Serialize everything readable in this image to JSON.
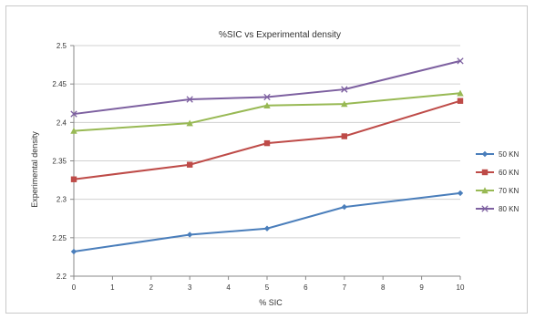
{
  "chart_data": {
    "type": "line",
    "title": "%SIC vs Experimental density",
    "xlabel": "% SIC",
    "ylabel": "Experimental density",
    "xlim": [
      0,
      10
    ],
    "ylim": [
      2.2,
      2.5
    ],
    "x_ticks": [
      "0",
      "1",
      "2",
      "3",
      "4",
      "5",
      "6",
      "7",
      "8",
      "9",
      "10"
    ],
    "y_ticks": [
      "2.2",
      "2.25",
      "2.3",
      "2.35",
      "2.4",
      "2.45",
      "2.5"
    ],
    "grid": "horizontal",
    "legend_position": "right",
    "series": [
      {
        "name": "50 KN",
        "color": "#4a7ebb",
        "marker": "diamond",
        "x": [
          0,
          3,
          5,
          7,
          10
        ],
        "y": [
          2.232,
          2.254,
          2.262,
          2.29,
          2.308
        ]
      },
      {
        "name": "60 KN",
        "color": "#be4b48",
        "marker": "square",
        "x": [
          0,
          3,
          5,
          7,
          10
        ],
        "y": [
          2.326,
          2.345,
          2.373,
          2.382,
          2.428
        ]
      },
      {
        "name": "70 KN",
        "color": "#98b954",
        "marker": "triangle",
        "x": [
          0,
          3,
          5,
          7,
          10
        ],
        "y": [
          2.389,
          2.399,
          2.422,
          2.424,
          2.438
        ]
      },
      {
        "name": "80 KN",
        "color": "#7d60a0",
        "marker": "x",
        "x": [
          0,
          3,
          5,
          7,
          10
        ],
        "y": [
          2.411,
          2.43,
          2.433,
          2.443,
          2.48
        ]
      }
    ]
  }
}
